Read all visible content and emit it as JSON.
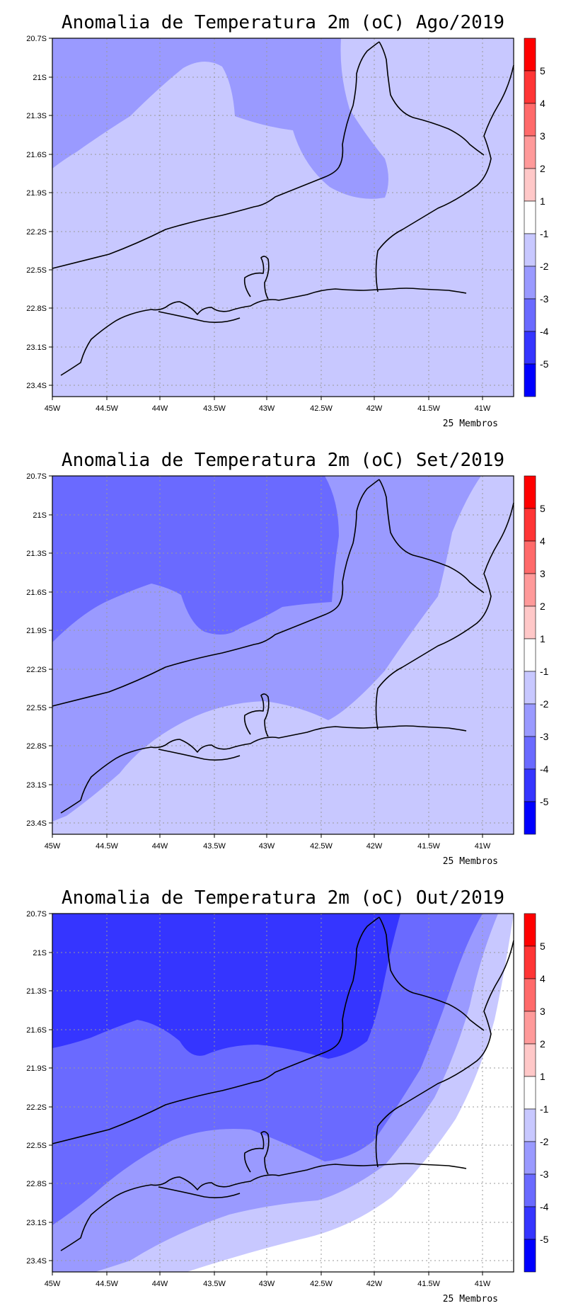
{
  "panels": [
    {
      "title": "Anomalia de Temperatura 2m (oC) Ago/2019",
      "members": "25 Membros",
      "shading": "aug"
    },
    {
      "title": "Anomalia de Temperatura 2m (oC) Set/2019",
      "members": "25 Membros",
      "shading": "sep"
    },
    {
      "title": "Anomalia de Temperatura 2m (oC) Out/2019",
      "members": "25 Membros",
      "shading": "oct"
    }
  ],
  "lon_ticks": [
    "45W",
    "44.5W",
    "44W",
    "43.5W",
    "43W",
    "42.5W",
    "42W",
    "41.5W",
    "41W"
  ],
  "lat_ticks": [
    "20.7S",
    "21S",
    "21.3S",
    "21.6S",
    "21.9S",
    "22.2S",
    "22.5S",
    "22.8S",
    "23.1S",
    "23.4S"
  ],
  "colorbar": {
    "labels": [
      "5",
      "4",
      "3",
      "2",
      "1",
      "-1",
      "-2",
      "-3",
      "-4",
      "-5"
    ],
    "colors": [
      "#ff0000",
      "#ff3535",
      "#ff6a6a",
      "#ff9a9a",
      "#ffc8c8",
      "#ffffff",
      "#c8c8ff",
      "#9a9aff",
      "#6a6aff",
      "#3535ff",
      "#0000ff"
    ]
  },
  "legend_colors": {
    "band_m1_m2": "#c8c8ff",
    "band_m2_m3": "#9a9aff",
    "band_m3_m4": "#6a6aff",
    "band_m4_m5": "#3535ff"
  }
}
